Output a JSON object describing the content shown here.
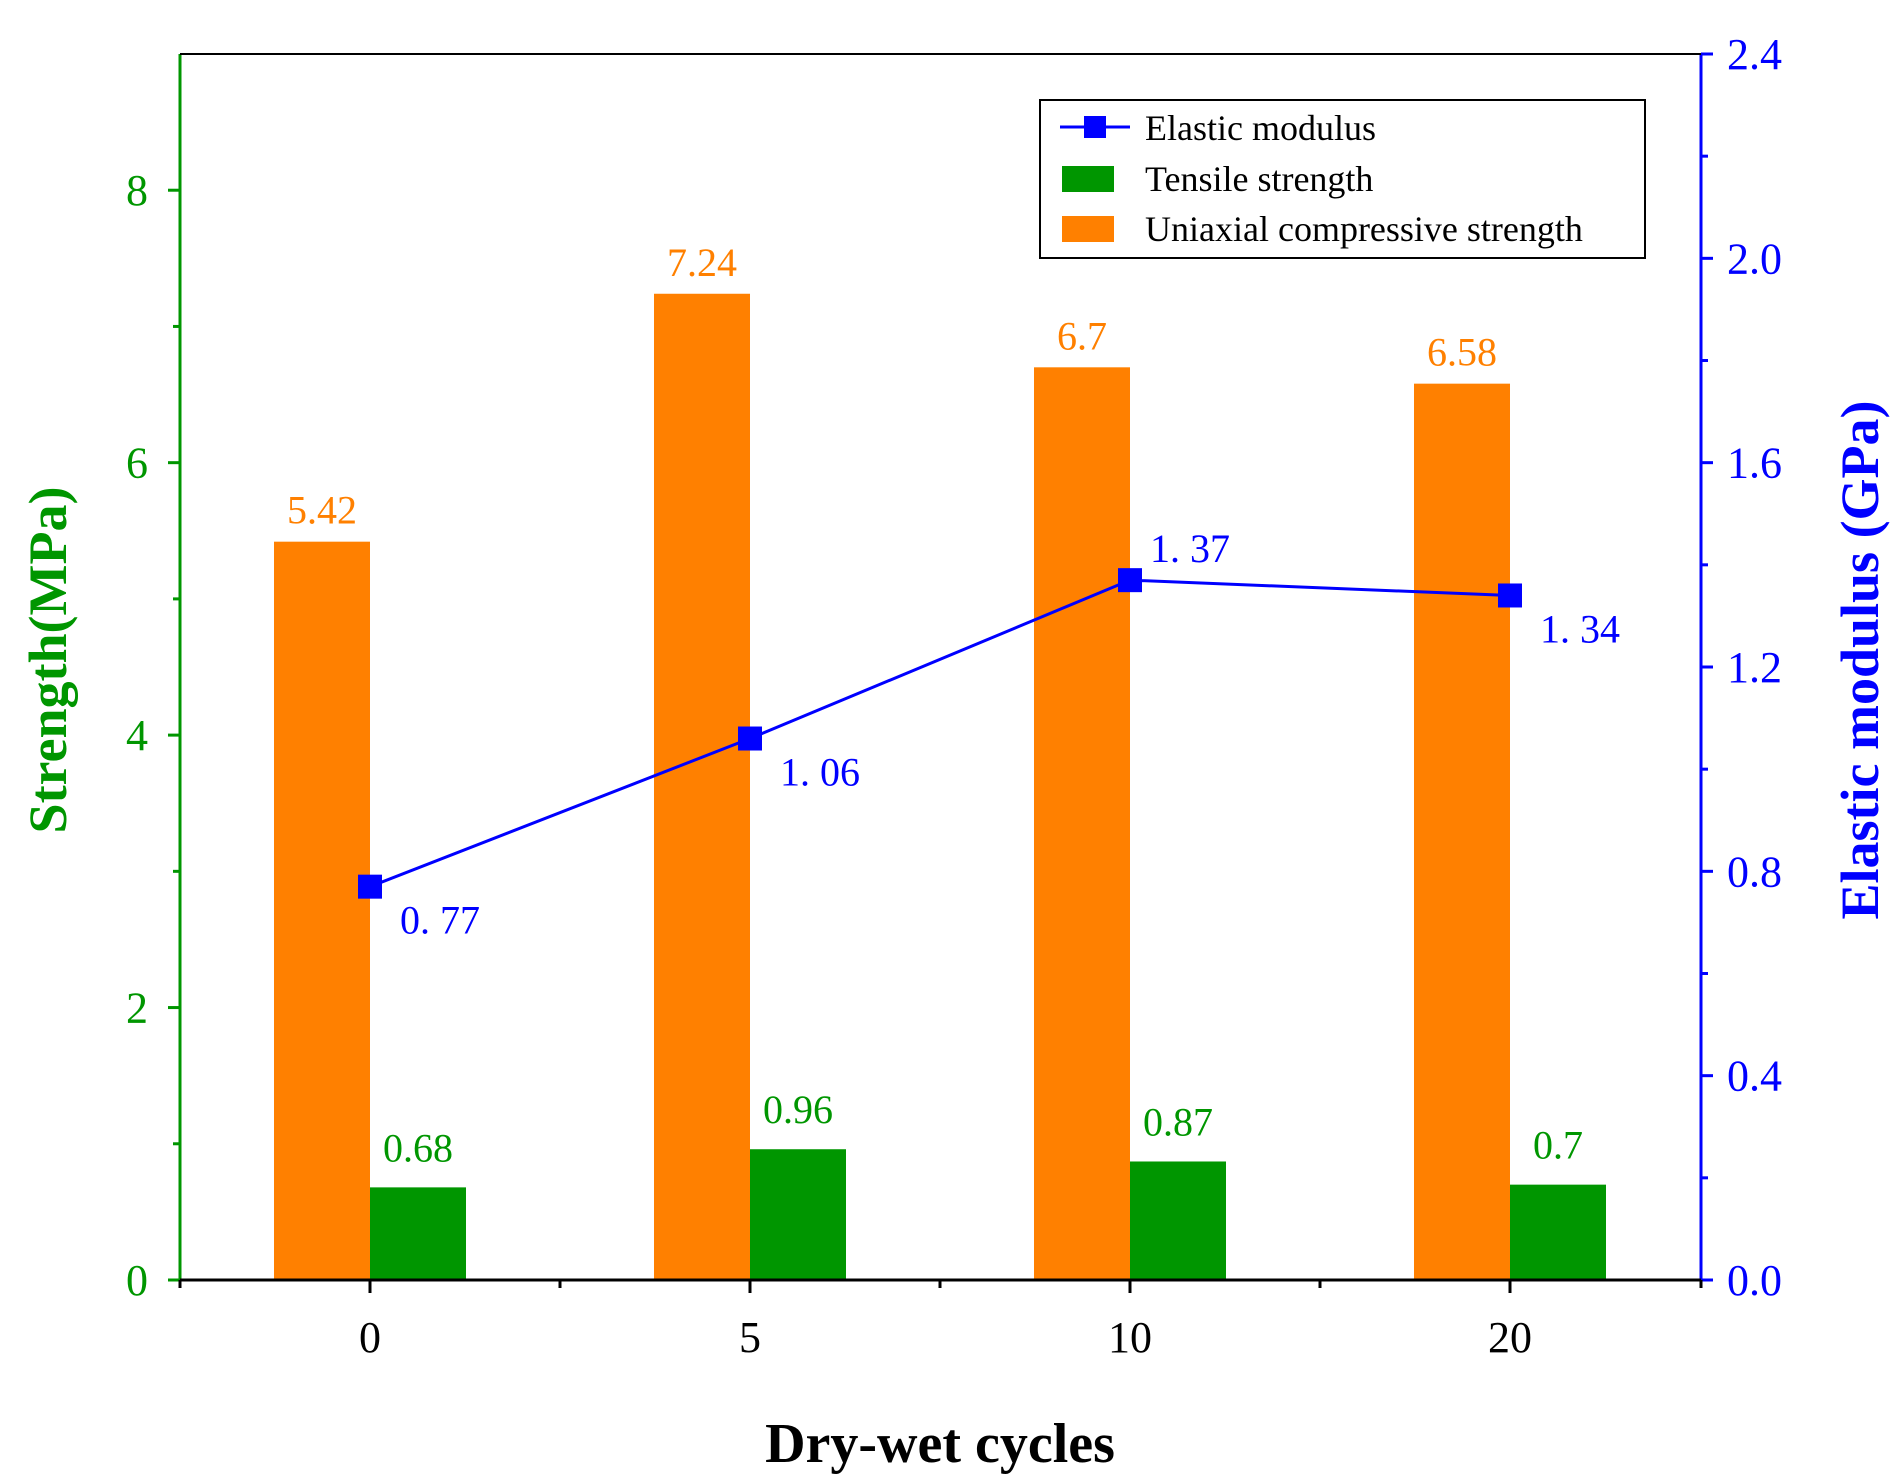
{
  "chart_data": {
    "type": "bar+line",
    "xlabel": "Dry-wet cycles",
    "ylabel_left": "Strength(MPa)",
    "ylabel_right": "Elastic modulus (GPa)",
    "categories": [
      "0",
      "5",
      "10",
      "20"
    ],
    "y_left": {
      "range": [
        0,
        9
      ],
      "ticks": [
        0,
        2,
        4,
        6,
        8
      ],
      "tick_labels": [
        "0",
        "2",
        "4",
        "6",
        "8"
      ],
      "color": "#009600"
    },
    "y_right": {
      "range": [
        0.0,
        2.4
      ],
      "ticks": [
        0.0,
        0.4,
        0.8,
        1.2,
        1.6,
        2.0,
        2.4
      ],
      "tick_labels": [
        "0.0",
        "0.4",
        "0.8",
        "1.2",
        "1.6",
        "2.0",
        "2.4"
      ],
      "color": "#0000ff"
    },
    "series": [
      {
        "name": "Uniaxial compressive strength",
        "kind": "bar",
        "axis": "left",
        "color": "#ff8000",
        "values": [
          5.42,
          7.24,
          6.7,
          6.58
        ],
        "labels": [
          "5.42",
          "7.24",
          "6.7",
          "6.58"
        ]
      },
      {
        "name": "Tensile strength",
        "kind": "bar",
        "axis": "left",
        "color": "#009600",
        "values": [
          0.68,
          0.96,
          0.87,
          0.7
        ],
        "labels": [
          "0.68",
          "0.96",
          "0.87",
          "0.7"
        ]
      },
      {
        "name": "Elastic modulus",
        "kind": "line",
        "axis": "right",
        "color": "#0000ff",
        "marker": "square",
        "values": [
          0.77,
          1.06,
          1.37,
          1.34
        ],
        "labels": [
          "0. 77",
          "1. 06",
          "1. 37",
          "1. 34"
        ]
      }
    ],
    "legend": {
      "position": "top-right",
      "entries": [
        "Elastic modulus",
        "Tensile strength",
        "Uniaxial compressive strength"
      ]
    }
  }
}
